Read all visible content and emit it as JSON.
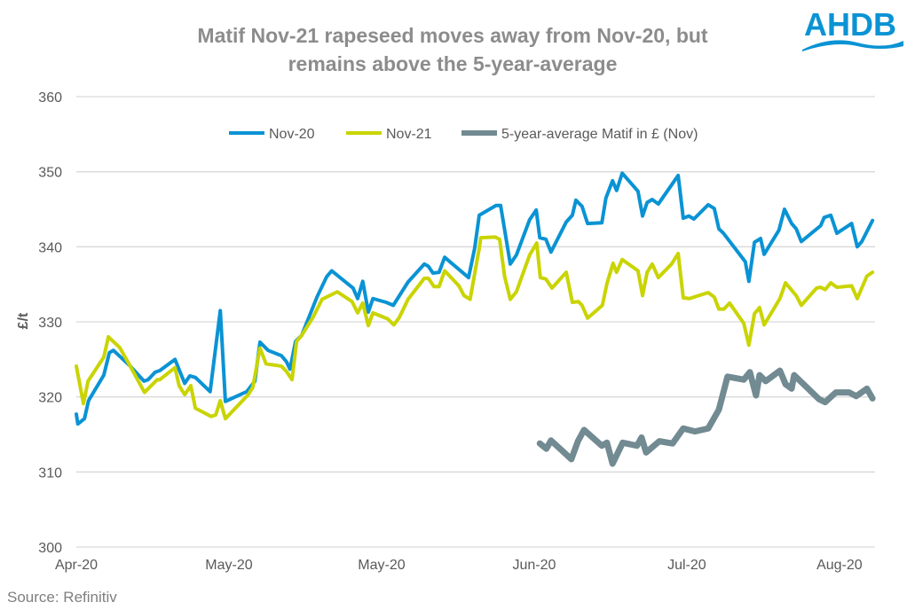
{
  "header": {
    "title_line1": "Matif Nov-21 rapeseed moves away from Nov-20, but",
    "title_line2": "remains above the 5-year-average",
    "logo_text": "AHDB"
  },
  "footer": {
    "source": "Source: Refinitiv"
  },
  "colors": {
    "nov20": "#0a93d4",
    "nov21": "#c9d400",
    "avg": "#728a92",
    "grid": "#d9d9d9",
    "text": "#595959"
  },
  "chart_data": {
    "type": "line",
    "title": "Matif Nov-21 rapeseed moves away from Nov-20, but remains above the 5-year-average",
    "xlabel": "",
    "ylabel": "£/t",
    "x_units": "days since Apr-20 tick (ticks every 30 days)",
    "xlim": [
      0,
      157
    ],
    "ylim": [
      300,
      360
    ],
    "yticks": [
      300,
      310,
      320,
      330,
      340,
      350,
      360
    ],
    "xticks": [
      {
        "x": 0,
        "label": "Apr-20"
      },
      {
        "x": 30,
        "label": "May-20"
      },
      {
        "x": 60,
        "label": "May-20"
      },
      {
        "x": 90,
        "label": "Jun-20"
      },
      {
        "x": 120,
        "label": "Jul-20"
      },
      {
        "x": 150,
        "label": "Aug-20"
      }
    ],
    "grid": true,
    "legend_position": "top-center",
    "series": [
      {
        "name": "Nov-20",
        "color": "#0a93d4",
        "points": [
          [
            0,
            317.7
          ],
          [
            0.3,
            316.4
          ],
          [
            1.6,
            317.1
          ],
          [
            2.4,
            319.5
          ],
          [
            5.4,
            322.9
          ],
          [
            6.5,
            325.9
          ],
          [
            7.3,
            326.2
          ],
          [
            10.6,
            324.1
          ],
          [
            13.3,
            322.1
          ],
          [
            14.1,
            322.3
          ],
          [
            15.5,
            323.3
          ],
          [
            16.4,
            323.5
          ],
          [
            19.4,
            325.0
          ],
          [
            21.3,
            321.8
          ],
          [
            22.3,
            322.8
          ],
          [
            23.4,
            322.6
          ],
          [
            26.3,
            320.7
          ],
          [
            28.3,
            331.5
          ],
          [
            29.3,
            319.4
          ],
          [
            33.5,
            320.7
          ],
          [
            35.1,
            322.1
          ],
          [
            36.1,
            327.3
          ],
          [
            37.7,
            326.2
          ],
          [
            40.3,
            325.5
          ],
          [
            41.3,
            324.7
          ],
          [
            42.0,
            323.7
          ],
          [
            43.1,
            327.4
          ],
          [
            44.3,
            328.2
          ],
          [
            47.3,
            333.3
          ],
          [
            49.2,
            336.0
          ],
          [
            50.2,
            336.8
          ],
          [
            54.4,
            334.5
          ],
          [
            55.3,
            333.1
          ],
          [
            56.3,
            335.4
          ],
          [
            57.4,
            331.3
          ],
          [
            58.3,
            333.1
          ],
          [
            60.9,
            332.6
          ],
          [
            62.3,
            332.2
          ],
          [
            65.2,
            335.3
          ],
          [
            68.4,
            337.7
          ],
          [
            69.2,
            337.4
          ],
          [
            70.1,
            336.5
          ],
          [
            71.3,
            336.6
          ],
          [
            72.4,
            338.6
          ],
          [
            77.1,
            335.9
          ],
          [
            78.3,
            339.8
          ],
          [
            79.2,
            344.2
          ],
          [
            82.5,
            345.5
          ],
          [
            83.4,
            345.5
          ],
          [
            85.3,
            337.7
          ],
          [
            86.5,
            338.9
          ],
          [
            89.1,
            343.6
          ],
          [
            90.4,
            344.9
          ],
          [
            91.1,
            341.2
          ],
          [
            92.3,
            341.0
          ],
          [
            93.3,
            339.3
          ],
          [
            96.3,
            343.3
          ],
          [
            97.5,
            344.2
          ],
          [
            98.2,
            346.2
          ],
          [
            99.4,
            345.4
          ],
          [
            100.5,
            343.1
          ],
          [
            103.3,
            343.2
          ],
          [
            104.1,
            346.5
          ],
          [
            105.4,
            348.8
          ],
          [
            106.2,
            347.5
          ],
          [
            107.3,
            349.8
          ],
          [
            110.4,
            347.4
          ],
          [
            111.3,
            344.1
          ],
          [
            112.2,
            345.9
          ],
          [
            113.2,
            346.3
          ],
          [
            114.4,
            345.7
          ],
          [
            118.3,
            349.5
          ],
          [
            119.3,
            343.8
          ],
          [
            120.4,
            344.1
          ],
          [
            121.4,
            343.7
          ],
          [
            124.2,
            345.6
          ],
          [
            125.4,
            345.1
          ],
          [
            126.3,
            342.4
          ],
          [
            127.2,
            341.8
          ],
          [
            131.5,
            338.0
          ],
          [
            132.2,
            335.4
          ],
          [
            133.3,
            340.6
          ],
          [
            134.5,
            341.1
          ],
          [
            135.2,
            339.0
          ],
          [
            138.1,
            342.2
          ],
          [
            139.2,
            345.0
          ],
          [
            140.6,
            343.1
          ],
          [
            141.5,
            342.4
          ],
          [
            142.5,
            340.7
          ],
          [
            146.3,
            342.8
          ],
          [
            147.0,
            343.9
          ],
          [
            148.3,
            344.2
          ],
          [
            149.5,
            341.8
          ],
          [
            152.4,
            343.1
          ],
          [
            153.5,
            340.0
          ],
          [
            154.4,
            340.7
          ],
          [
            156.5,
            343.5
          ]
        ]
      },
      {
        "name": "Nov-21",
        "color": "#c9d400",
        "points": [
          [
            0,
            324.1
          ],
          [
            1.4,
            319.1
          ],
          [
            2.3,
            322.1
          ],
          [
            5.4,
            325.3
          ],
          [
            6.3,
            328.0
          ],
          [
            8.5,
            326.6
          ],
          [
            10.6,
            324.1
          ],
          [
            13.4,
            320.6
          ],
          [
            15.9,
            322.3
          ],
          [
            16.4,
            322.3
          ],
          [
            19.4,
            323.9
          ],
          [
            20.2,
            321.5
          ],
          [
            21.3,
            320.3
          ],
          [
            22.5,
            321.5
          ],
          [
            23.4,
            318.5
          ],
          [
            26.5,
            317.4
          ],
          [
            27.4,
            317.6
          ],
          [
            28.3,
            319.5
          ],
          [
            29.3,
            317.1
          ],
          [
            33.8,
            320.3
          ],
          [
            34.7,
            321.3
          ],
          [
            36.1,
            326.5
          ],
          [
            37.3,
            324.4
          ],
          [
            40.3,
            324.1
          ],
          [
            41.3,
            323.4
          ],
          [
            42.4,
            322.3
          ],
          [
            43.3,
            327.4
          ],
          [
            44.3,
            328.2
          ],
          [
            46.6,
            330.7
          ],
          [
            48.3,
            333.0
          ],
          [
            51.3,
            334.0
          ],
          [
            54.2,
            332.7
          ],
          [
            55.3,
            331.2
          ],
          [
            56.3,
            332.5
          ],
          [
            57.4,
            329.5
          ],
          [
            58.3,
            331.2
          ],
          [
            61.2,
            330.4
          ],
          [
            62.4,
            329.6
          ],
          [
            63.5,
            330.6
          ],
          [
            65.2,
            333.0
          ],
          [
            68.4,
            335.8
          ],
          [
            69.2,
            335.8
          ],
          [
            70.3,
            334.7
          ],
          [
            71.3,
            334.7
          ],
          [
            72.4,
            336.8
          ],
          [
            75.2,
            334.8
          ],
          [
            76.2,
            333.5
          ],
          [
            77.4,
            333.0
          ],
          [
            79.2,
            339.8
          ],
          [
            79.5,
            341.2
          ],
          [
            82.3,
            341.3
          ],
          [
            83.2,
            341.0
          ],
          [
            84.2,
            336.0
          ],
          [
            85.3,
            333.0
          ],
          [
            86.5,
            334.0
          ],
          [
            89.1,
            338.9
          ],
          [
            90.5,
            340.5
          ],
          [
            91.2,
            335.9
          ],
          [
            92.3,
            335.7
          ],
          [
            93.5,
            334.5
          ],
          [
            96.3,
            336.6
          ],
          [
            97.5,
            332.6
          ],
          [
            98.7,
            332.7
          ],
          [
            99.4,
            332.2
          ],
          [
            100.5,
            330.5
          ],
          [
            103.4,
            332.2
          ],
          [
            104.3,
            335.1
          ],
          [
            105.5,
            337.8
          ],
          [
            106.2,
            336.6
          ],
          [
            107.3,
            338.3
          ],
          [
            110.4,
            336.8
          ],
          [
            111.3,
            333.5
          ],
          [
            112.2,
            336.6
          ],
          [
            113.2,
            337.7
          ],
          [
            114.4,
            335.9
          ],
          [
            117.0,
            337.7
          ],
          [
            118.3,
            339.1
          ],
          [
            119.3,
            333.2
          ],
          [
            120.5,
            333.1
          ],
          [
            124.2,
            333.9
          ],
          [
            125.4,
            333.3
          ],
          [
            126.3,
            331.7
          ],
          [
            127.3,
            331.7
          ],
          [
            128.4,
            332.5
          ],
          [
            131.2,
            329.8
          ],
          [
            132.2,
            326.9
          ],
          [
            133.3,
            331.1
          ],
          [
            134.3,
            331.9
          ],
          [
            135.2,
            329.6
          ],
          [
            138.3,
            333.1
          ],
          [
            139.4,
            335.2
          ],
          [
            141.5,
            333.5
          ],
          [
            142.5,
            332.2
          ],
          [
            145.5,
            334.5
          ],
          [
            146.3,
            334.6
          ],
          [
            147.2,
            334.3
          ],
          [
            148.3,
            335.2
          ],
          [
            149.5,
            334.6
          ],
          [
            152.4,
            334.8
          ],
          [
            153.5,
            333.1
          ],
          [
            155.4,
            336.1
          ],
          [
            156.5,
            336.6
          ]
        ]
      },
      {
        "name": "5-year-average Matif in £ (Nov)",
        "color": "#728a92",
        "points": [
          [
            91.1,
            313.8
          ],
          [
            92.4,
            313.1
          ],
          [
            93.3,
            314.2
          ],
          [
            95.4,
            312.9
          ],
          [
            97.3,
            311.7
          ],
          [
            98.6,
            314.1
          ],
          [
            99.8,
            315.6
          ],
          [
            103.3,
            313.5
          ],
          [
            104.3,
            313.9
          ],
          [
            105.4,
            311.1
          ],
          [
            107.4,
            313.9
          ],
          [
            110.2,
            313.5
          ],
          [
            111.1,
            314.6
          ],
          [
            112.0,
            312.6
          ],
          [
            114.6,
            314.1
          ],
          [
            117.2,
            313.8
          ],
          [
            119.3,
            315.8
          ],
          [
            121.6,
            315.4
          ],
          [
            124.2,
            315.8
          ],
          [
            126.3,
            318.3
          ],
          [
            128.0,
            322.7
          ],
          [
            131.2,
            322.3
          ],
          [
            132.4,
            323.3
          ],
          [
            133.6,
            320.2
          ],
          [
            134.3,
            322.9
          ],
          [
            135.5,
            322.1
          ],
          [
            138.3,
            323.5
          ],
          [
            139.4,
            321.7
          ],
          [
            140.6,
            321.1
          ],
          [
            141.1,
            322.9
          ],
          [
            146.0,
            319.7
          ],
          [
            147.2,
            319.3
          ],
          [
            149.3,
            320.6
          ],
          [
            151.9,
            320.6
          ],
          [
            153.3,
            320.1
          ],
          [
            155.4,
            321.1
          ],
          [
            156.5,
            319.8
          ]
        ]
      }
    ]
  }
}
